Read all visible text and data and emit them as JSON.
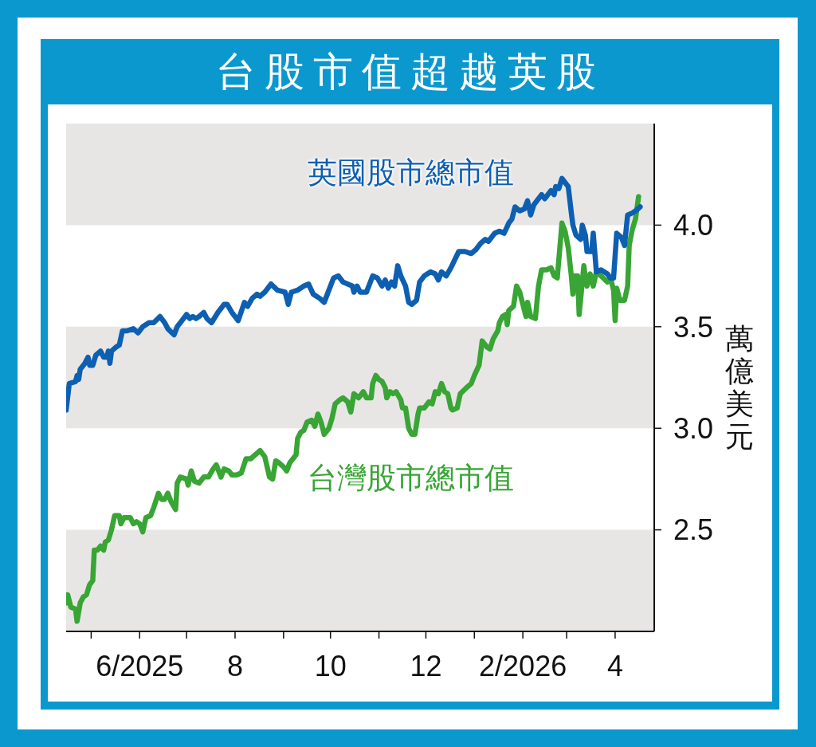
{
  "chart_data": {
    "type": "line",
    "title": "台股市值超越英股",
    "ylabel": "萬億美元",
    "xlim": [
      "2025-04-15",
      "2026-04-26"
    ],
    "xticks": [
      {
        "value": "2025-05-01",
        "label": null
      },
      {
        "value": "2025-06-01",
        "label": "6/2025"
      },
      {
        "value": "2025-07-01",
        "label": null
      },
      {
        "value": "2025-08-01",
        "label": "8"
      },
      {
        "value": "2025-09-01",
        "label": null
      },
      {
        "value": "2025-10-01",
        "label": "10"
      },
      {
        "value": "2025-11-01",
        "label": null
      },
      {
        "value": "2025-12-01",
        "label": "12"
      },
      {
        "value": "2026-01-01",
        "label": null
      },
      {
        "value": "2026-02-01",
        "label": "2/2026"
      },
      {
        "value": "2026-03-01",
        "label": null
      },
      {
        "value": "2026-04-01",
        "label": "4"
      }
    ],
    "ylim": [
      2.0,
      4.5
    ],
    "yticks": [
      2.5,
      {
        "value": 3,
        "label": "3.0"
      },
      3.5,
      {
        "value": 4,
        "label": "4.0"
      }
    ],
    "bands": [
      {
        "axis": "y",
        "from": 4.0,
        "to": 4.5,
        "color": "#e8e5e5"
      },
      {
        "axis": "y",
        "from": 3.0,
        "to": 3.5,
        "color": "#e8e5e5"
      },
      {
        "axis": "y",
        "from": 2.0,
        "to": 2.5,
        "color": "#e8e5e5"
      }
    ],
    "series": [
      {
        "name": "英國股市總市值",
        "color": "#0d5fb2",
        "x": [
          "2025-04-15",
          "2025-04-17",
          "2025-04-21",
          "2025-04-22",
          "2025-04-23",
          "2025-04-24",
          "2025-04-27",
          "2025-04-29",
          "2025-04-30",
          "2025-05-02",
          "2025-05-04",
          "2025-05-07",
          "2025-05-09",
          "2025-05-11",
          "2025-05-12",
          "2025-05-13",
          "2025-05-14",
          "2025-05-17",
          "2025-05-19",
          "2025-05-21",
          "2025-05-24",
          "2025-05-28",
          "2025-05-31",
          "2025-06-03",
          "2025-06-07",
          "2025-06-10",
          "2025-06-14",
          "2025-06-17",
          "2025-06-19",
          "2025-06-23",
          "2025-06-25",
          "2025-06-28",
          "2025-07-01",
          "2025-07-03",
          "2025-07-05",
          "2025-07-07",
          "2025-07-09",
          "2025-07-12",
          "2025-07-14",
          "2025-07-17",
          "2025-07-21",
          "2025-07-25",
          "2025-07-27",
          "2025-07-30",
          "2025-08-03",
          "2025-08-07",
          "2025-08-09",
          "2025-08-12",
          "2025-08-15",
          "2025-08-17",
          "2025-08-20",
          "2025-08-24",
          "2025-08-28",
          "2025-09-02",
          "2025-09-04",
          "2025-09-06",
          "2025-09-10",
          "2025-09-14",
          "2025-09-17",
          "2025-09-20",
          "2025-09-24",
          "2025-09-27",
          "2025-09-29",
          "2025-10-03",
          "2025-10-06",
          "2025-10-09",
          "2025-10-12",
          "2025-10-15",
          "2025-10-16",
          "2025-10-18",
          "2025-10-20",
          "2025-10-24",
          "2025-10-28",
          "2025-10-31",
          "2025-11-03",
          "2025-11-05",
          "2025-11-07",
          "2025-11-09",
          "2025-11-11",
          "2025-11-13",
          "2025-11-15",
          "2025-11-18",
          "2025-11-20",
          "2025-11-22",
          "2025-11-25",
          "2025-11-27",
          "2025-11-30",
          "2025-12-04",
          "2025-12-07",
          "2025-12-09",
          "2025-12-11",
          "2025-12-14",
          "2025-12-17",
          "2025-12-22",
          "2025-12-26",
          "2025-12-30",
          "2026-01-02",
          "2026-01-05",
          "2026-01-08",
          "2026-01-10",
          "2026-01-14",
          "2026-01-17",
          "2026-01-20",
          "2026-01-23",
          "2026-01-25",
          "2026-01-27",
          "2026-01-30",
          "2026-02-02",
          "2026-02-04",
          "2026-02-06",
          "2026-02-08",
          "2026-02-11",
          "2026-02-13",
          "2026-02-15",
          "2026-02-19",
          "2026-02-21",
          "2026-02-22",
          "2026-02-24",
          "2026-02-26",
          "2026-02-28",
          "2026-03-02",
          "2026-03-04",
          "2026-03-05",
          "2026-03-07",
          "2026-03-10",
          "2026-03-11",
          "2026-03-13",
          "2026-03-14",
          "2026-03-17",
          "2026-03-18",
          "2026-03-20",
          "2026-03-23",
          "2026-03-27",
          "2026-03-29",
          "2026-03-31",
          "2026-04-02",
          "2026-04-05",
          "2026-04-07",
          "2026-04-09",
          "2026-04-12",
          "2026-04-14",
          "2026-04-17"
        ],
        "values": [
          3.09,
          3.22,
          3.23,
          3.26,
          3.24,
          3.29,
          3.32,
          3.35,
          3.31,
          3.31,
          3.36,
          3.38,
          3.35,
          3.35,
          3.38,
          3.32,
          3.38,
          3.4,
          3.41,
          3.48,
          3.48,
          3.49,
          3.47,
          3.5,
          3.52,
          3.52,
          3.55,
          3.52,
          3.49,
          3.46,
          3.5,
          3.53,
          3.56,
          3.54,
          3.55,
          3.54,
          3.55,
          3.57,
          3.54,
          3.52,
          3.57,
          3.61,
          3.61,
          3.57,
          3.53,
          3.62,
          3.6,
          3.64,
          3.66,
          3.65,
          3.67,
          3.71,
          3.68,
          3.67,
          3.61,
          3.67,
          3.68,
          3.7,
          3.71,
          3.66,
          3.64,
          3.62,
          3.66,
          3.74,
          3.75,
          3.72,
          3.71,
          3.7,
          3.67,
          3.7,
          3.67,
          3.67,
          3.75,
          3.74,
          3.7,
          3.73,
          3.69,
          3.72,
          3.7,
          3.8,
          3.75,
          3.7,
          3.62,
          3.61,
          3.63,
          3.72,
          3.75,
          3.77,
          3.76,
          3.73,
          3.77,
          3.75,
          3.79,
          3.87,
          3.87,
          3.86,
          3.88,
          3.91,
          3.93,
          3.92,
          3.96,
          3.97,
          3.96,
          4.01,
          4.03,
          4.09,
          4.07,
          4.08,
          4.12,
          4.05,
          4.1,
          4.13,
          4.15,
          4.13,
          4.17,
          4.15,
          4.19,
          4.18,
          4.23,
          4.21,
          4.19,
          4.06,
          4.0,
          3.95,
          3.93,
          4.0,
          3.95,
          3.87,
          3.87,
          3.96,
          3.77,
          3.78,
          3.76,
          3.74,
          3.74,
          3.96,
          3.94,
          3.9,
          4.05,
          4.06,
          4.07,
          4.09
        ]
      },
      {
        "name": "台灣股市總市值",
        "color": "#38a534",
        "x": [
          "2025-04-15",
          "2025-04-16",
          "2025-04-18",
          "2025-04-21",
          "2025-04-22",
          "2025-04-24",
          "2025-04-26",
          "2025-04-28",
          "2025-04-30",
          "2025-05-02",
          "2025-05-03",
          "2025-05-05",
          "2025-05-07",
          "2025-05-09",
          "2025-05-10",
          "2025-05-12",
          "2025-05-14",
          "2025-05-16",
          "2025-05-19",
          "2025-05-20",
          "2025-05-22",
          "2025-05-26",
          "2025-05-28",
          "2025-05-30",
          "2025-06-01",
          "2025-06-03",
          "2025-06-05",
          "2025-06-08",
          "2025-06-10",
          "2025-06-13",
          "2025-06-15",
          "2025-06-17",
          "2025-06-19",
          "2025-06-21",
          "2025-06-24",
          "2025-06-25",
          "2025-06-27",
          "2025-07-01",
          "2025-07-02",
          "2025-07-04",
          "2025-07-06",
          "2025-07-09",
          "2025-07-12",
          "2025-07-15",
          "2025-07-18",
          "2025-07-20",
          "2025-07-23",
          "2025-07-25",
          "2025-07-28",
          "2025-07-30",
          "2025-08-02",
          "2025-08-05",
          "2025-08-08",
          "2025-08-11",
          "2025-08-14",
          "2025-08-17",
          "2025-08-20",
          "2025-08-23",
          "2025-08-25",
          "2025-08-27",
          "2025-08-29",
          "2025-09-01",
          "2025-09-03",
          "2025-09-05",
          "2025-09-07",
          "2025-09-09",
          "2025-09-10",
          "2025-09-12",
          "2025-09-14",
          "2025-09-16",
          "2025-09-19",
          "2025-09-21",
          "2025-09-23",
          "2025-09-25",
          "2025-09-27",
          "2025-09-30",
          "2025-10-02",
          "2025-10-04",
          "2025-10-07",
          "2025-10-09",
          "2025-10-12",
          "2025-10-14",
          "2025-10-16",
          "2025-10-19",
          "2025-10-20",
          "2025-10-22",
          "2025-10-24",
          "2025-10-27",
          "2025-10-28",
          "2025-10-30",
          "2025-11-01",
          "2025-11-03",
          "2025-11-05",
          "2025-11-06",
          "2025-11-08",
          "2025-11-10",
          "2025-11-12",
          "2025-11-15",
          "2025-11-16",
          "2025-11-18",
          "2025-11-20",
          "2025-11-22",
          "2025-11-24",
          "2025-11-26",
          "2025-11-27",
          "2025-11-30",
          "2025-12-03",
          "2025-12-05",
          "2025-12-07",
          "2025-12-09",
          "2025-12-11",
          "2025-12-13",
          "2025-12-15",
          "2025-12-17",
          "2025-12-18",
          "2025-12-21",
          "2025-12-23",
          "2025-12-27",
          "2025-12-30",
          "2026-01-01",
          "2026-01-04",
          "2026-01-06",
          "2026-01-09",
          "2026-01-11",
          "2026-01-13",
          "2026-01-16",
          "2026-01-17",
          "2026-01-19",
          "2026-01-21",
          "2026-01-22",
          "2026-01-23",
          "2026-01-26",
          "2026-01-28",
          "2026-01-30",
          "2026-02-01",
          "2026-02-03",
          "2026-02-04",
          "2026-02-06",
          "2026-02-09",
          "2026-02-11",
          "2026-02-13",
          "2026-02-16",
          "2026-02-19",
          "2026-02-21",
          "2026-02-23",
          "2026-02-26",
          "2026-02-28",
          "2026-03-02",
          "2026-03-04",
          "2026-03-05",
          "2026-03-06",
          "2026-03-08",
          "2026-03-09",
          "2026-03-12",
          "2026-03-13",
          "2026-03-14",
          "2026-03-16",
          "2026-03-18",
          "2026-03-20",
          "2026-03-23",
          "2026-03-27",
          "2026-03-29",
          "2026-03-31",
          "2026-04-01",
          "2026-04-02",
          "2026-04-04",
          "2026-04-07",
          "2026-04-09",
          "2026-04-10",
          "2026-04-12",
          "2026-04-14",
          "2026-04-16"
        ],
        "values": [
          2.14,
          2.18,
          2.12,
          2.11,
          2.05,
          2.14,
          2.17,
          2.18,
          2.23,
          2.25,
          2.4,
          2.4,
          2.42,
          2.4,
          2.44,
          2.45,
          2.5,
          2.57,
          2.57,
          2.53,
          2.56,
          2.56,
          2.53,
          2.54,
          2.53,
          2.49,
          2.56,
          2.57,
          2.61,
          2.68,
          2.65,
          2.65,
          2.68,
          2.64,
          2.6,
          2.73,
          2.76,
          2.75,
          2.72,
          2.79,
          2.74,
          2.73,
          2.76,
          2.76,
          2.8,
          2.82,
          2.76,
          2.8,
          2.79,
          2.77,
          2.77,
          2.78,
          2.85,
          2.85,
          2.87,
          2.89,
          2.86,
          2.76,
          2.75,
          2.84,
          2.83,
          2.81,
          2.79,
          2.83,
          2.85,
          2.87,
          2.95,
          2.98,
          2.99,
          3.03,
          3.04,
          3.01,
          3.07,
          3.03,
          2.97,
          3.0,
          3.05,
          3.12,
          3.14,
          3.15,
          3.13,
          3.08,
          3.17,
          3.15,
          3.16,
          3.18,
          3.15,
          3.15,
          3.22,
          3.26,
          3.24,
          3.23,
          3.2,
          3.15,
          3.18,
          3.17,
          3.18,
          3.14,
          3.1,
          3.1,
          3.0,
          2.97,
          2.97,
          3.07,
          3.1,
          3.1,
          3.13,
          3.12,
          3.18,
          3.17,
          3.22,
          3.18,
          3.17,
          3.1,
          3.09,
          3.1,
          3.17,
          3.2,
          3.22,
          3.26,
          3.31,
          3.43,
          3.4,
          3.39,
          3.44,
          3.48,
          3.52,
          3.55,
          3.56,
          3.51,
          3.58,
          3.6,
          3.7,
          3.67,
          3.61,
          3.55,
          3.62,
          3.55,
          3.54,
          3.7,
          3.78,
          3.78,
          3.79,
          3.75,
          3.74,
          4.01,
          3.97,
          3.89,
          3.75,
          3.66,
          3.75,
          3.75,
          3.56,
          3.8,
          3.74,
          3.7,
          3.76,
          3.7,
          3.77,
          3.75,
          3.72,
          3.74,
          3.68,
          3.53,
          3.69,
          3.63,
          3.63,
          3.7,
          3.9,
          3.98,
          4.03,
          4.14
        ]
      }
    ]
  }
}
